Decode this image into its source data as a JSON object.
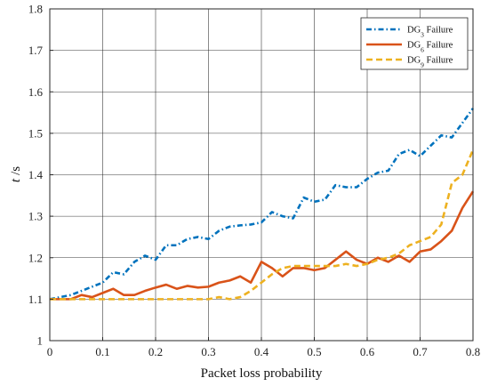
{
  "chart_data": {
    "type": "line",
    "title": "",
    "xlabel": "Packet loss probability",
    "ylabel": "t /s",
    "ylabel_var": "t",
    "ylabel_unit": "/s",
    "xlim": [
      0,
      0.8
    ],
    "ylim": [
      1,
      1.8
    ],
    "xticks": [
      0,
      0.1,
      0.2,
      0.3,
      0.4,
      0.5,
      0.6,
      0.7,
      0.8
    ],
    "xtick_labels": [
      "0",
      "0.1",
      "0.2",
      "0.3",
      "0.4",
      "0.5",
      "0.6",
      "0.7",
      "0.8"
    ],
    "yticks": [
      1,
      1.1,
      1.2,
      1.3,
      1.4,
      1.5,
      1.6,
      1.7,
      1.8
    ],
    "ytick_labels": [
      "1",
      "1.1",
      "1.2",
      "1.3",
      "1.4",
      "1.5",
      "1.6",
      "1.7",
      "1.8"
    ],
    "grid": true,
    "legend_position": "top-right",
    "series": [
      {
        "name": "DG3 Failure",
        "legend_prefix": "DG",
        "legend_sub": "3",
        "legend_suffix": " Failure",
        "color": "#0072BD",
        "dash": "dash-dot",
        "x": [
          0,
          0.02,
          0.04,
          0.06,
          0.08,
          0.1,
          0.12,
          0.14,
          0.16,
          0.18,
          0.2,
          0.22,
          0.24,
          0.26,
          0.28,
          0.3,
          0.32,
          0.34,
          0.36,
          0.38,
          0.4,
          0.42,
          0.44,
          0.46,
          0.48,
          0.5,
          0.52,
          0.54,
          0.56,
          0.58,
          0.6,
          0.62,
          0.64,
          0.66,
          0.68,
          0.7,
          0.72,
          0.74,
          0.76,
          0.78,
          0.8
        ],
        "y": [
          1.1,
          1.105,
          1.11,
          1.12,
          1.13,
          1.14,
          1.165,
          1.16,
          1.19,
          1.205,
          1.195,
          1.23,
          1.23,
          1.245,
          1.25,
          1.245,
          1.265,
          1.275,
          1.278,
          1.28,
          1.285,
          1.31,
          1.3,
          1.295,
          1.345,
          1.335,
          1.34,
          1.375,
          1.37,
          1.37,
          1.39,
          1.405,
          1.41,
          1.45,
          1.46,
          1.445,
          1.47,
          1.495,
          1.49,
          1.525,
          1.56
        ]
      },
      {
        "name": "DG6 Failure",
        "legend_prefix": "DG",
        "legend_sub": "6",
        "legend_suffix": " Failure",
        "color": "#D95319",
        "dash": "solid",
        "x": [
          0,
          0.02,
          0.04,
          0.06,
          0.08,
          0.1,
          0.12,
          0.14,
          0.16,
          0.18,
          0.2,
          0.22,
          0.24,
          0.26,
          0.28,
          0.3,
          0.32,
          0.34,
          0.36,
          0.38,
          0.4,
          0.42,
          0.44,
          0.46,
          0.48,
          0.5,
          0.52,
          0.54,
          0.56,
          0.58,
          0.6,
          0.62,
          0.64,
          0.66,
          0.68,
          0.7,
          0.72,
          0.74,
          0.76,
          0.78,
          0.8
        ],
        "y": [
          1.1,
          1.1,
          1.1,
          1.11,
          1.105,
          1.115,
          1.125,
          1.11,
          1.11,
          1.12,
          1.128,
          1.135,
          1.125,
          1.132,
          1.128,
          1.13,
          1.14,
          1.145,
          1.155,
          1.14,
          1.19,
          1.175,
          1.155,
          1.175,
          1.175,
          1.17,
          1.175,
          1.195,
          1.215,
          1.195,
          1.185,
          1.2,
          1.19,
          1.205,
          1.19,
          1.215,
          1.22,
          1.24,
          1.265,
          1.32,
          1.36
        ]
      },
      {
        "name": "DG9 Failure",
        "legend_prefix": "DG",
        "legend_sub": "9",
        "legend_suffix": " Failure",
        "color": "#EDB120",
        "dash": "dashed",
        "x": [
          0,
          0.02,
          0.04,
          0.06,
          0.08,
          0.1,
          0.12,
          0.14,
          0.16,
          0.18,
          0.2,
          0.22,
          0.24,
          0.26,
          0.28,
          0.3,
          0.32,
          0.34,
          0.36,
          0.38,
          0.4,
          0.42,
          0.44,
          0.46,
          0.48,
          0.5,
          0.52,
          0.54,
          0.56,
          0.58,
          0.6,
          0.62,
          0.64,
          0.66,
          0.68,
          0.7,
          0.72,
          0.74,
          0.76,
          0.78,
          0.8
        ],
        "y": [
          1.1,
          1.1,
          1.1,
          1.1,
          1.1,
          1.1,
          1.1,
          1.1,
          1.1,
          1.1,
          1.1,
          1.1,
          1.1,
          1.1,
          1.1,
          1.1,
          1.105,
          1.1,
          1.105,
          1.12,
          1.14,
          1.16,
          1.175,
          1.18,
          1.18,
          1.18,
          1.18,
          1.18,
          1.185,
          1.18,
          1.185,
          1.195,
          1.2,
          1.21,
          1.23,
          1.24,
          1.25,
          1.28,
          1.38,
          1.4,
          1.46
        ]
      }
    ]
  }
}
